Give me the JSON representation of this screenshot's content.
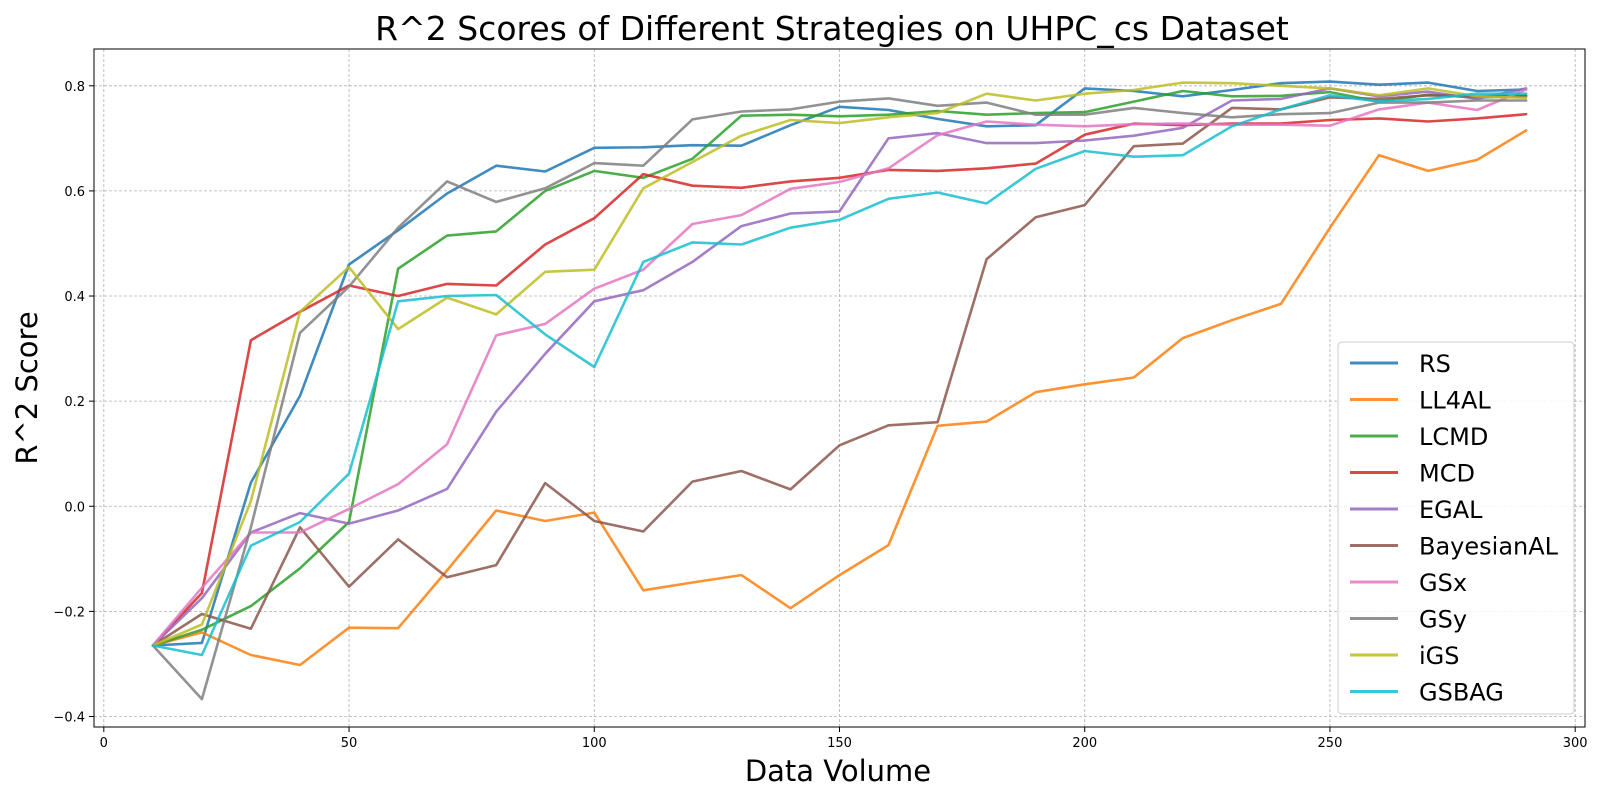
{
  "chart_data": {
    "type": "line",
    "title": "R^2 Scores of Different Strategies on UHPC_cs Dataset",
    "xlabel": "Data Volume",
    "ylabel": "R^2 Score",
    "xlim": [
      -2,
      302
    ],
    "ylim": [
      -0.42,
      0.87
    ],
    "xticks": [
      0,
      50,
      100,
      150,
      200,
      250,
      300
    ],
    "xtick_labels": [
      "0",
      "50",
      "100",
      "150",
      "200",
      "250",
      "300"
    ],
    "yticks": [
      -0.4,
      -0.2,
      0.0,
      0.2,
      0.4,
      0.6,
      0.8
    ],
    "ytick_labels": [
      "−0.4",
      "−0.2",
      "0.0",
      "0.2",
      "0.4",
      "0.6",
      "0.8"
    ],
    "grid": true,
    "legend_position": "lower-right",
    "x": [
      10,
      20,
      30,
      40,
      50,
      60,
      70,
      80,
      90,
      100,
      110,
      120,
      130,
      140,
      150,
      160,
      170,
      180,
      190,
      200,
      210,
      220,
      230,
      240,
      250,
      260,
      270,
      280,
      290
    ],
    "series": [
      {
        "name": "RS",
        "color": "#1f77b4",
        "values": [
          -0.265,
          -0.26,
          0.045,
          0.21,
          0.46,
          0.525,
          0.595,
          0.648,
          0.637,
          0.682,
          0.683,
          0.687,
          0.686,
          0.725,
          0.76,
          0.754,
          0.737,
          0.723,
          0.725,
          0.795,
          0.79,
          0.78,
          0.792,
          0.805,
          0.808,
          0.802,
          0.806,
          0.79,
          0.793
        ]
      },
      {
        "name": "LL4AL",
        "color": "#ff7f0e",
        "values": [
          -0.265,
          -0.24,
          -0.283,
          -0.302,
          -0.231,
          -0.232,
          -0.122,
          -0.008,
          -0.028,
          -0.012,
          -0.16,
          -0.145,
          -0.131,
          -0.194,
          -0.131,
          -0.074,
          0.153,
          0.161,
          0.217,
          0.232,
          0.245,
          0.32,
          0.354,
          0.385,
          0.53,
          0.668,
          0.638,
          0.659,
          0.715
        ]
      },
      {
        "name": "LCMD",
        "color": "#2ca02c",
        "values": [
          -0.265,
          -0.235,
          -0.19,
          -0.118,
          -0.03,
          0.452,
          0.515,
          0.523,
          0.6,
          0.638,
          0.625,
          0.661,
          0.743,
          0.745,
          0.742,
          0.745,
          0.752,
          0.745,
          0.748,
          0.75,
          0.77,
          0.79,
          0.78,
          0.781,
          0.788,
          0.77,
          0.783,
          0.778,
          0.78
        ]
      },
      {
        "name": "MCD",
        "color": "#d62728",
        "values": [
          -0.265,
          -0.165,
          0.316,
          0.37,
          0.42,
          0.4,
          0.423,
          0.42,
          0.498,
          0.548,
          0.632,
          0.61,
          0.606,
          0.618,
          0.625,
          0.64,
          0.638,
          0.643,
          0.652,
          0.707,
          0.728,
          0.725,
          0.728,
          0.728,
          0.735,
          0.738,
          0.732,
          0.738,
          0.746
        ]
      },
      {
        "name": "EGAL",
        "color": "#9467bd",
        "values": [
          -0.265,
          -0.175,
          -0.05,
          -0.013,
          -0.033,
          -0.008,
          0.033,
          0.18,
          0.29,
          0.39,
          0.411,
          0.465,
          0.533,
          0.557,
          0.561,
          0.7,
          0.71,
          0.691,
          0.691,
          0.696,
          0.705,
          0.72,
          0.772,
          0.775,
          0.795,
          0.78,
          0.789,
          0.775,
          0.795
        ]
      },
      {
        "name": "BayesianAL",
        "color": "#8c564b",
        "values": [
          -0.265,
          -0.205,
          -0.233,
          -0.04,
          -0.153,
          -0.063,
          -0.135,
          -0.112,
          0.044,
          -0.028,
          -0.048,
          0.047,
          0.067,
          0.032,
          0.116,
          0.154,
          0.16,
          0.47,
          0.55,
          0.573,
          0.685,
          0.69,
          0.758,
          0.755,
          0.778,
          0.775,
          0.782,
          0.78,
          0.782
        ]
      },
      {
        "name": "GSx",
        "color": "#e377c2",
        "values": [
          -0.265,
          -0.155,
          -0.05,
          -0.05,
          -0.005,
          0.042,
          0.118,
          0.325,
          0.347,
          0.414,
          0.45,
          0.537,
          0.554,
          0.604,
          0.617,
          0.643,
          0.706,
          0.732,
          0.726,
          0.723,
          0.727,
          0.728,
          0.726,
          0.726,
          0.724,
          0.755,
          0.768,
          0.754,
          0.793
        ]
      },
      {
        "name": "GSy",
        "color": "#7f7f7f",
        "values": [
          -0.265,
          -0.367,
          -0.04,
          0.33,
          0.418,
          0.53,
          0.618,
          0.579,
          0.605,
          0.653,
          0.648,
          0.736,
          0.751,
          0.755,
          0.77,
          0.776,
          0.762,
          0.768,
          0.745,
          0.745,
          0.758,
          0.748,
          0.74,
          0.746,
          0.748,
          0.768,
          0.768,
          0.772,
          0.772
        ]
      },
      {
        "name": "iGS",
        "color": "#bcbd22",
        "values": [
          -0.265,
          -0.225,
          0.01,
          0.37,
          0.455,
          0.337,
          0.397,
          0.365,
          0.446,
          0.45,
          0.605,
          0.655,
          0.705,
          0.735,
          0.729,
          0.74,
          0.748,
          0.785,
          0.772,
          0.785,
          0.792,
          0.806,
          0.805,
          0.8,
          0.795,
          0.782,
          0.795,
          0.78,
          0.777
        ]
      },
      {
        "name": "GSBAG",
        "color": "#17becf",
        "values": [
          -0.265,
          -0.283,
          -0.075,
          -0.03,
          0.062,
          0.39,
          0.4,
          0.402,
          0.327,
          0.265,
          0.465,
          0.502,
          0.498,
          0.53,
          0.545,
          0.585,
          0.597,
          0.576,
          0.642,
          0.676,
          0.665,
          0.668,
          0.723,
          0.755,
          0.782,
          0.77,
          0.775,
          0.785,
          0.785
        ]
      }
    ]
  }
}
